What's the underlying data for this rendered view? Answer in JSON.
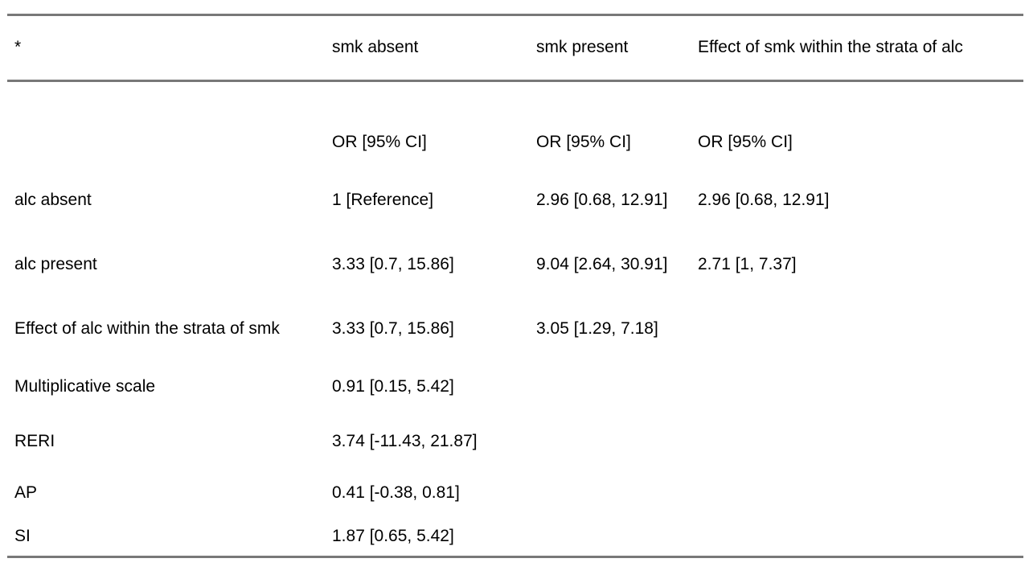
{
  "table": {
    "rule_color": "#787878",
    "text_color": "#000000",
    "background_color": "#ffffff",
    "header": [
      "*",
      "smk absent",
      "smk present",
      "Effect of smk within the strata of alc"
    ],
    "subheader": [
      "",
      "OR [95% CI]",
      "OR [95% CI]",
      "OR [95% CI]"
    ],
    "rows": [
      [
        "alc absent",
        "1 [Reference]",
        "2.96 [0.68, 12.91]",
        "2.96 [0.68, 12.91]"
      ],
      [
        "alc present",
        "3.33 [0.7, 15.86]",
        "9.04 [2.64, 30.91]",
        "2.71 [1, 7.37]"
      ],
      [
        "Effect of alc within the strata of smk",
        "3.33 [0.7, 15.86]",
        "3.05 [1.29, 7.18]",
        ""
      ],
      [
        "Multiplicative scale",
        "0.91 [0.15, 5.42]",
        "",
        ""
      ],
      [
        "RERI",
        "3.74 [-11.43, 21.87]",
        "",
        ""
      ],
      [
        "AP",
        "0.41 [-0.38, 0.81]",
        "",
        ""
      ],
      [
        "SI",
        "1.87 [0.65, 5.42]",
        "",
        ""
      ]
    ]
  }
}
